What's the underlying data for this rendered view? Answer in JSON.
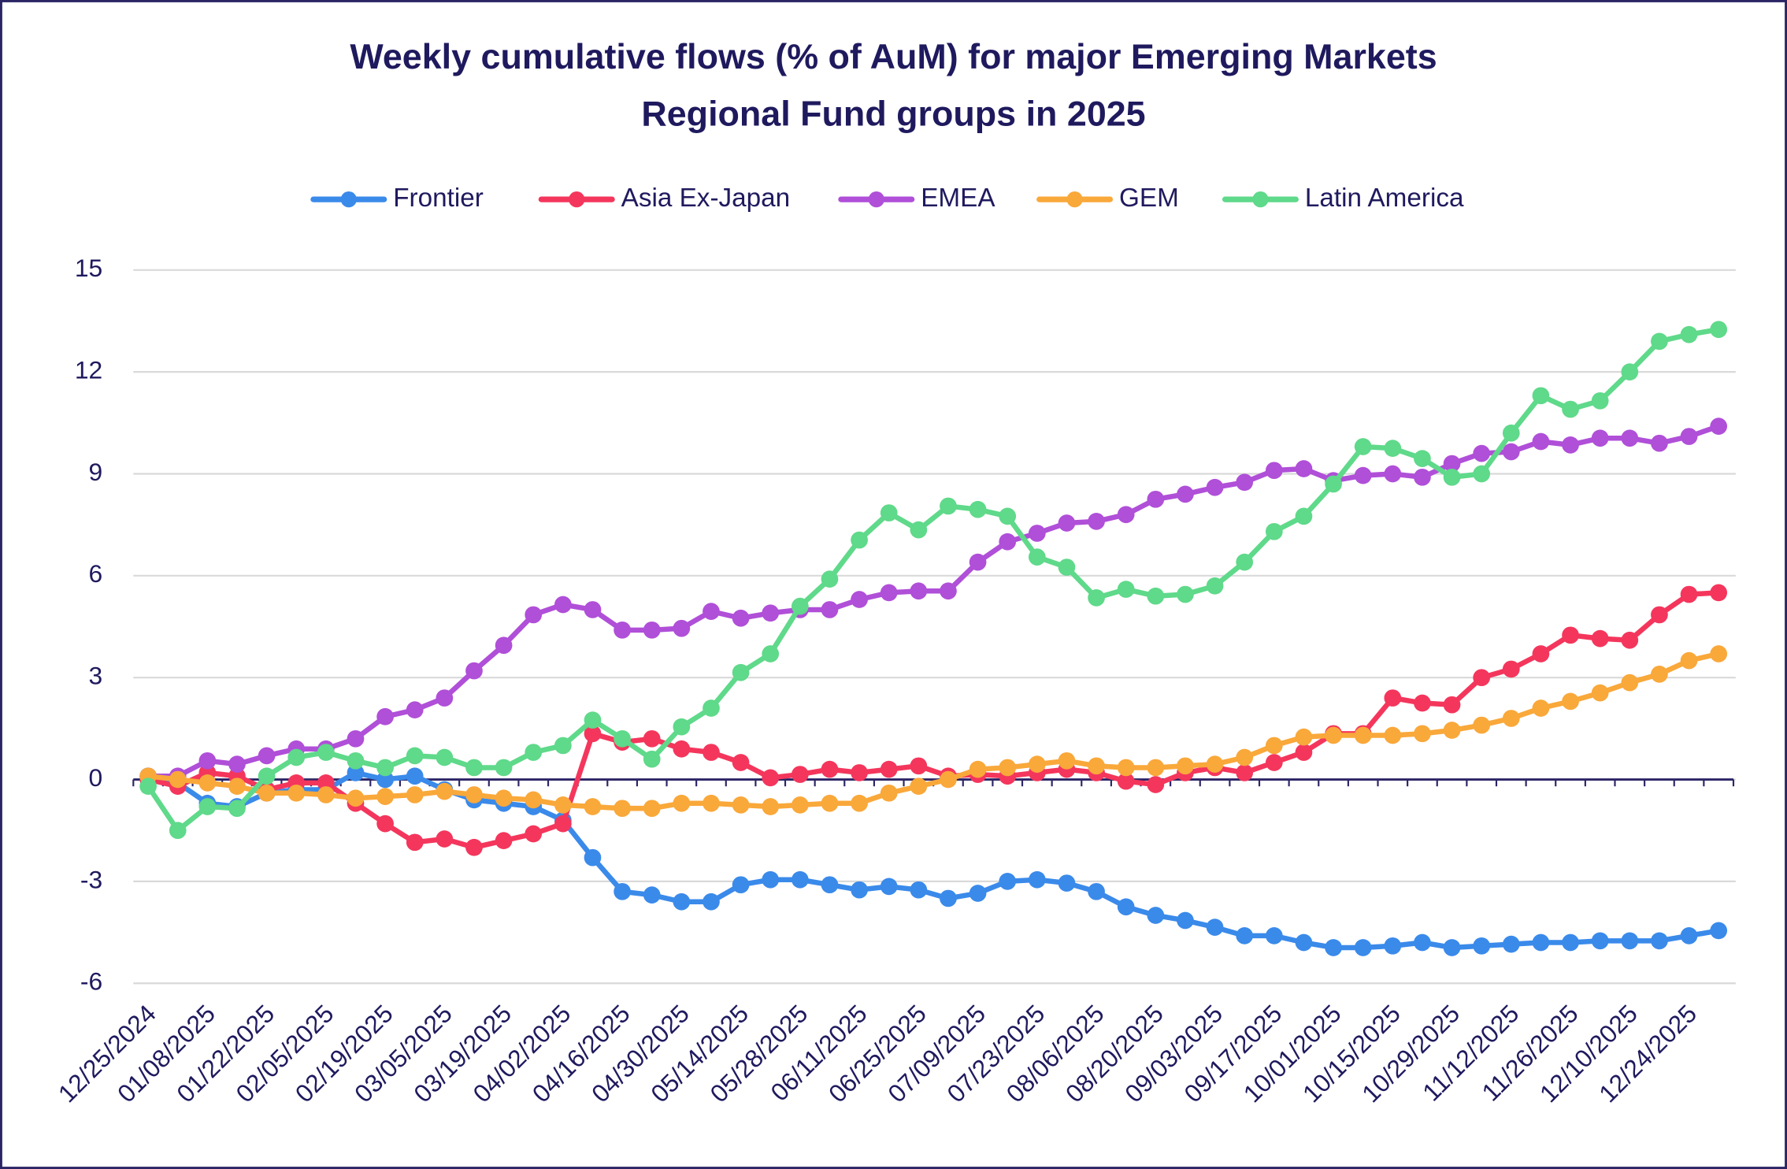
{
  "chart_data": {
    "type": "line",
    "title": [
      "Weekly cumulative flows (% of AuM) for major Emerging Markets",
      "Regional Fund groups in 2025"
    ],
    "categories": [
      "12/25/2024",
      null,
      "01/08/2025",
      null,
      "01/22/2025",
      null,
      "02/05/2025",
      null,
      "02/19/2025",
      null,
      "03/05/2025",
      null,
      "03/19/2025",
      null,
      "04/02/2025",
      null,
      "04/16/2025",
      null,
      "04/30/2025",
      null,
      "05/14/2025",
      null,
      "05/28/2025",
      null,
      "06/11/2025",
      null,
      "06/25/2025",
      null,
      "07/09/2025",
      null,
      "07/23/2025",
      null,
      "08/06/2025",
      null,
      "08/20/2025",
      null,
      "09/03/2025",
      null,
      "09/17/2025",
      null,
      "10/01/2025",
      null,
      "10/15/2025",
      null,
      "10/29/2025",
      null,
      "11/12/2025",
      null,
      "11/26/2025",
      null,
      "12/10/2025",
      null,
      "12/24/2025",
      null
    ],
    "series": [
      {
        "name": "Frontier",
        "color": "#3a8aea",
        "values": [
          0.1,
          -0.1,
          -0.7,
          -0.8,
          -0.4,
          -0.3,
          -0.3,
          0.2,
          0.0,
          0.1,
          -0.3,
          -0.6,
          -0.7,
          -0.8,
          -1.2,
          -2.3,
          -3.3,
          -3.4,
          -3.6,
          -3.6,
          -3.1,
          -2.95,
          -2.95,
          -3.1,
          -3.25,
          -3.15,
          -3.25,
          -3.5,
          -3.35,
          -3.0,
          -2.95,
          -3.05,
          -3.3,
          -3.75,
          -4.0,
          -4.15,
          -4.35,
          -4.6,
          -4.6,
          -4.8,
          -4.95,
          -4.95,
          -4.9,
          -4.8,
          -4.95,
          -4.9,
          -4.85,
          -4.8,
          -4.8,
          -4.75,
          -4.75,
          -4.75,
          -4.6,
          -4.45
        ]
      },
      {
        "name": "Asia Ex-Japan",
        "color": "#f4365c",
        "values": [
          0.0,
          -0.2,
          0.2,
          0.1,
          -0.3,
          -0.1,
          -0.1,
          -0.7,
          -1.3,
          -1.85,
          -1.75,
          -2.0,
          -1.8,
          -1.6,
          -1.3,
          1.35,
          1.1,
          1.2,
          0.9,
          0.8,
          0.5,
          0.05,
          0.15,
          0.3,
          0.2,
          0.3,
          0.4,
          0.1,
          0.15,
          0.1,
          0.2,
          0.3,
          0.2,
          -0.05,
          -0.15,
          0.2,
          0.35,
          0.2,
          0.5,
          0.8,
          1.35,
          1.35,
          2.4,
          2.25,
          2.2,
          3.0,
          3.25,
          3.7,
          4.25,
          4.15,
          4.1,
          4.85,
          5.45,
          5.5
        ]
      },
      {
        "name": "EMEA",
        "color": "#b04fd8",
        "values": [
          0.1,
          0.1,
          0.55,
          0.45,
          0.7,
          0.9,
          0.9,
          1.2,
          1.85,
          2.05,
          2.4,
          3.2,
          3.95,
          4.85,
          5.15,
          5.0,
          4.4,
          4.4,
          4.45,
          4.95,
          4.75,
          4.9,
          5.0,
          5.0,
          5.3,
          5.5,
          5.55,
          5.55,
          6.4,
          7.0,
          7.25,
          7.55,
          7.6,
          7.8,
          8.25,
          8.4,
          8.6,
          8.75,
          9.1,
          9.15,
          8.8,
          8.95,
          9.0,
          8.9,
          9.3,
          9.6,
          9.65,
          9.95,
          9.85,
          10.05,
          10.05,
          9.9,
          10.1,
          10.4
        ]
      },
      {
        "name": "GEM",
        "color": "#f9a83a",
        "values": [
          0.1,
          0.0,
          -0.1,
          -0.2,
          -0.4,
          -0.4,
          -0.45,
          -0.55,
          -0.5,
          -0.45,
          -0.35,
          -0.45,
          -0.55,
          -0.6,
          -0.75,
          -0.8,
          -0.85,
          -0.85,
          -0.7,
          -0.7,
          -0.75,
          -0.8,
          -0.75,
          -0.7,
          -0.7,
          -0.4,
          -0.2,
          0.0,
          0.3,
          0.35,
          0.45,
          0.55,
          0.4,
          0.35,
          0.35,
          0.4,
          0.45,
          0.65,
          1.0,
          1.25,
          1.3,
          1.3,
          1.3,
          1.35,
          1.45,
          1.6,
          1.8,
          2.1,
          2.3,
          2.55,
          2.85,
          3.1,
          3.5,
          3.7
        ]
      },
      {
        "name": "Latin America",
        "color": "#5fd98a",
        "values": [
          -0.2,
          -1.5,
          -0.8,
          -0.85,
          0.1,
          0.65,
          0.8,
          0.55,
          0.35,
          0.7,
          0.65,
          0.35,
          0.35,
          0.8,
          1.0,
          1.75,
          1.2,
          0.6,
          1.55,
          2.1,
          3.15,
          3.7,
          5.1,
          5.9,
          7.05,
          7.85,
          7.35,
          8.05,
          7.95,
          7.75,
          6.55,
          6.25,
          5.35,
          5.6,
          5.4,
          5.45,
          5.7,
          6.4,
          7.3,
          7.75,
          8.7,
          9.8,
          9.75,
          9.45,
          8.9,
          9.0,
          10.2,
          11.3,
          10.9,
          11.15,
          12.0,
          12.9,
          13.1,
          13.25
        ]
      }
    ],
    "ylim": [
      -6,
      15
    ],
    "yticks": [
      -6,
      -3,
      0,
      3,
      6,
      9,
      12,
      15
    ],
    "grid": true
  }
}
